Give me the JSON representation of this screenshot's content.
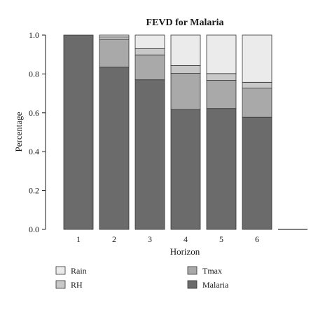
{
  "chart_data": {
    "type": "bar",
    "stacked": true,
    "title": "FEVD for Malaria",
    "xlabel": "Horizon",
    "ylabel": "Percentage",
    "categories": [
      "1",
      "2",
      "3",
      "4",
      "5",
      "6",
      ""
    ],
    "ylim": [
      0.0,
      1.0
    ],
    "yticks": [
      "0.0",
      "0.2",
      "0.4",
      "0.6",
      "0.8",
      "1.0"
    ],
    "grid": false,
    "legend_position": "bottom",
    "series": [
      {
        "name": "Malaria",
        "color": "#6b6b6b",
        "values": [
          1.0,
          0.835,
          0.77,
          0.617,
          0.622,
          0.577,
          0
        ]
      },
      {
        "name": "Tmax",
        "color": "#a9a9a9",
        "values": [
          0.0,
          0.143,
          0.128,
          0.186,
          0.145,
          0.15,
          0
        ]
      },
      {
        "name": "RH",
        "color": "#c8c8c8",
        "values": [
          0.0,
          0.012,
          0.032,
          0.04,
          0.035,
          0.03,
          0
        ]
      },
      {
        "name": "Rain",
        "color": "#ebebeb",
        "values": [
          0.0,
          0.01,
          0.07,
          0.157,
          0.198,
          0.243,
          0
        ]
      }
    ],
    "legend_order": [
      "Rain",
      "Tmax",
      "RH",
      "Malaria"
    ]
  }
}
